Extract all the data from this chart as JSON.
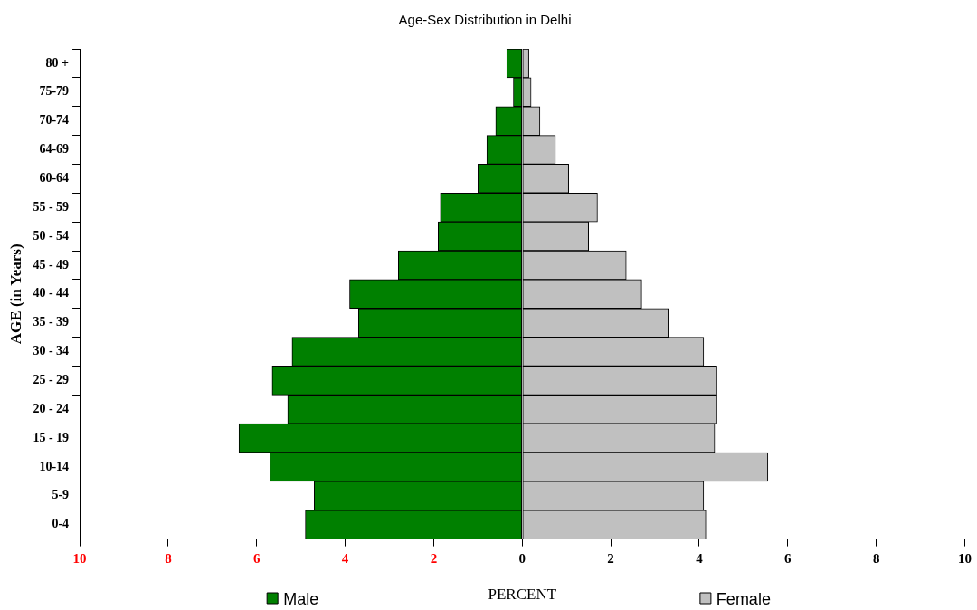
{
  "chart_data": {
    "type": "bar",
    "orientation": "horizontal",
    "stacked": true,
    "title": "Age-Sex Distribution in Delhi",
    "xlabel": "PERCENT",
    "ylabel": "AGE (in Years)",
    "categories": [
      "80 +",
      "75-79",
      "70-74",
      "64-69",
      "60-64",
      "55 - 59",
      "50 - 54",
      "45 - 49",
      "40 - 44",
      "35 - 39",
      "30 - 34",
      "25 - 29",
      "20 - 24",
      "15 - 19",
      "10-14",
      "5-9",
      "0-4"
    ],
    "series": [
      {
        "name": "Male",
        "color": "#008000",
        "values": [
          -0.35,
          -0.2,
          -0.6,
          -0.8,
          -1.0,
          -1.85,
          -1.9,
          -2.8,
          -3.9,
          -3.7,
          -5.2,
          -5.65,
          -5.3,
          -6.4,
          -5.7,
          -4.7,
          -4.9
        ]
      },
      {
        "name": "Female",
        "color": "#c0c0c0",
        "values": [
          0.15,
          0.2,
          0.4,
          0.75,
          1.05,
          1.7,
          1.5,
          2.35,
          2.7,
          3.3,
          4.1,
          4.4,
          4.4,
          4.35,
          5.55,
          4.1,
          4.15
        ]
      }
    ],
    "xlim": [
      -10,
      10
    ],
    "xticks": [
      {
        "value": -10,
        "label": "10"
      },
      {
        "value": -8,
        "label": "8"
      },
      {
        "value": -6,
        "label": "6"
      },
      {
        "value": -4,
        "label": "4"
      },
      {
        "value": -2,
        "label": "2"
      },
      0,
      2,
      4,
      6,
      8,
      10
    ],
    "grid": false,
    "legend": "bottom"
  }
}
